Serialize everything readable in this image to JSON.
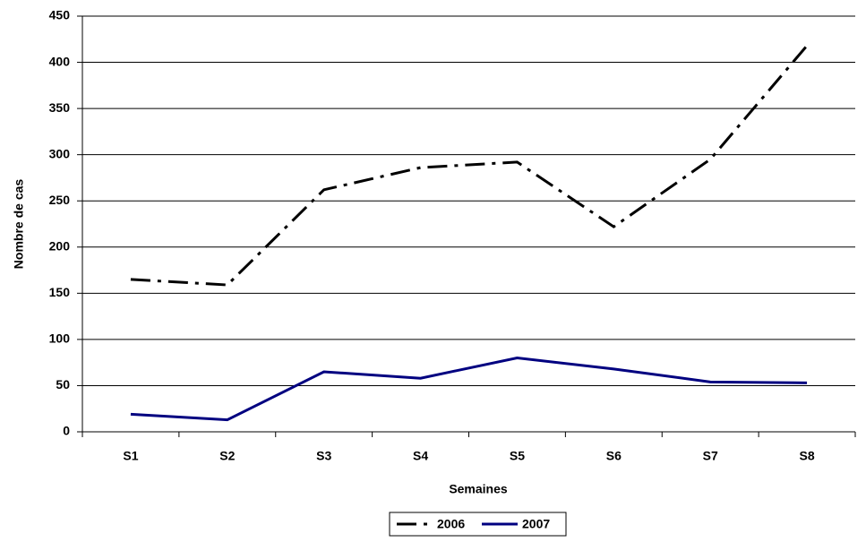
{
  "chart_data": {
    "type": "line",
    "categories": [
      "S1",
      "S2",
      "S3",
      "S4",
      "S5",
      "S6",
      "S7",
      "S8"
    ],
    "series": [
      {
        "name": "2006",
        "color": "#000000",
        "dash": true,
        "values": [
          165,
          159,
          262,
          286,
          292,
          222,
          295,
          418
        ]
      },
      {
        "name": "2007",
        "color": "#000080",
        "dash": false,
        "values": [
          19,
          13,
          65,
          58,
          80,
          68,
          54,
          53
        ]
      }
    ],
    "xlabel": "Semaines",
    "ylabel": "Nombre de cas",
    "ylim": [
      0,
      450
    ],
    "yticks": [
      0,
      50,
      100,
      150,
      200,
      250,
      300,
      350,
      400,
      450
    ],
    "grid": true,
    "legend": "bottom"
  }
}
